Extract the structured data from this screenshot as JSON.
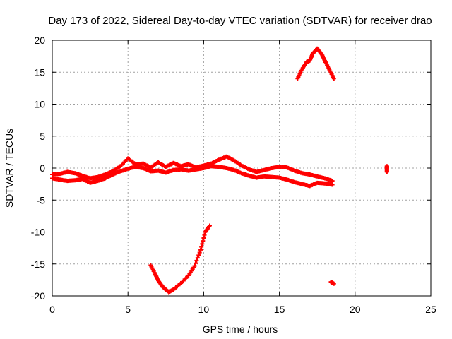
{
  "chart_data": {
    "type": "scatter",
    "title": "Day 173 of 2022, Sidereal Day-to-day VTEC variation (SDTVAR) for receiver drao",
    "xlabel": "GPS time / hours",
    "ylabel": "SDTVAR / TECUs",
    "xlim": [
      0,
      25
    ],
    "ylim": [
      -20,
      20
    ],
    "xticks": [
      0,
      5,
      10,
      15,
      20,
      25
    ],
    "yticks": [
      -20,
      -15,
      -10,
      -5,
      0,
      5,
      10,
      15,
      20
    ],
    "grid": true,
    "marker": "plus",
    "color": "#ff0000",
    "series": [
      {
        "name": "band-upper",
        "x": [
          0,
          0.5,
          1,
          1.5,
          2,
          2.5,
          3,
          3.5,
          4,
          4.5,
          5,
          5.5,
          6,
          6.5,
          7,
          7.5,
          8,
          8.5,
          9,
          9.5,
          10,
          10.5,
          11,
          11.5,
          12,
          12.5,
          13,
          13.5,
          14,
          14.5,
          15,
          15.5,
          16,
          16.5,
          17,
          17.5,
          18,
          18.5
        ],
        "y": [
          -1.0,
          -0.9,
          -0.6,
          -0.8,
          -1.2,
          -1.6,
          -1.4,
          -1.0,
          -0.5,
          0.3,
          1.5,
          0.6,
          0.7,
          0.1,
          0.9,
          0.2,
          0.8,
          0.3,
          0.6,
          0.1,
          0.4,
          0.7,
          1.3,
          1.8,
          1.2,
          0.4,
          -0.2,
          -0.6,
          -0.3,
          0.0,
          0.2,
          0.1,
          -0.4,
          -0.8,
          -1.0,
          -1.3,
          -1.6,
          -2.0
        ]
      },
      {
        "name": "band-lower",
        "x": [
          0,
          0.5,
          1,
          1.5,
          2,
          2.5,
          3,
          3.5,
          4,
          4.5,
          5,
          5.5,
          6,
          6.5,
          7,
          7.5,
          8,
          8.5,
          9,
          9.5,
          10,
          10.5,
          11,
          11.5,
          12,
          12.5,
          13,
          13.5,
          14,
          14.5,
          15,
          15.5,
          16,
          16.5,
          17,
          17.5,
          18,
          18.5
        ],
        "y": [
          -1.6,
          -1.8,
          -2.0,
          -1.9,
          -1.7,
          -2.3,
          -2.0,
          -1.6,
          -1.0,
          -0.5,
          -0.1,
          0.2,
          0.0,
          -0.5,
          -0.4,
          -0.7,
          -0.3,
          -0.2,
          -0.4,
          -0.2,
          0.0,
          0.3,
          0.2,
          0.0,
          -0.3,
          -0.8,
          -1.2,
          -1.5,
          -1.3,
          -1.4,
          -1.5,
          -1.8,
          -2.2,
          -2.5,
          -2.8,
          -2.3,
          -2.4,
          -2.6
        ]
      },
      {
        "name": "afternoon-peak",
        "x": [
          16.2,
          16.5,
          16.8,
          17.0,
          17.2,
          17.5,
          17.8,
          18.0,
          18.3,
          18.6
        ],
        "y": [
          14.0,
          15.5,
          16.6,
          16.8,
          17.9,
          18.7,
          17.8,
          16.8,
          15.4,
          14.0
        ]
      },
      {
        "name": "morning-trough",
        "x": [
          6.5,
          6.8,
          7.0,
          7.3,
          7.7,
          8.0,
          8.5,
          9.0,
          9.4,
          9.8,
          10.1,
          10.4
        ],
        "y": [
          -15.2,
          -16.6,
          -17.6,
          -18.6,
          -19.4,
          -19.0,
          -18.0,
          -16.8,
          -15.3,
          -12.8,
          -10.0,
          -9.0
        ]
      },
      {
        "name": "isolated-late",
        "x": [
          18.4,
          18.6,
          22.1,
          22.1,
          22.1
        ],
        "y": [
          -17.8,
          -18.1,
          -0.6,
          0.0,
          0.3
        ]
      }
    ]
  }
}
